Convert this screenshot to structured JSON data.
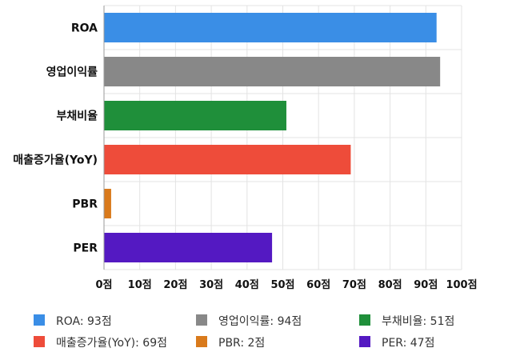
{
  "chart_data": {
    "type": "bar",
    "orientation": "horizontal",
    "categories": [
      "ROA",
      "영업이익률",
      "부채비율",
      "매출증가율(YoY)",
      "PBR",
      "PER"
    ],
    "values": [
      93,
      94,
      51,
      69,
      2,
      47
    ],
    "colors": [
      "#3a8ee6",
      "#888888",
      "#1f8f3a",
      "#ee4c3a",
      "#d97a1c",
      "#5419c2"
    ],
    "xlim": [
      0,
      100
    ],
    "xticks": [
      0,
      10,
      20,
      30,
      40,
      50,
      60,
      70,
      80,
      90,
      100
    ],
    "tick_suffix": "점",
    "grid": true,
    "legend": {
      "position": "bottom",
      "entries": [
        "ROA: 93점",
        "영업이익률: 94점",
        "부채비율: 51점",
        "매출증가율(YoY): 69점",
        "PBR: 2점",
        "PER: 47점"
      ]
    }
  }
}
